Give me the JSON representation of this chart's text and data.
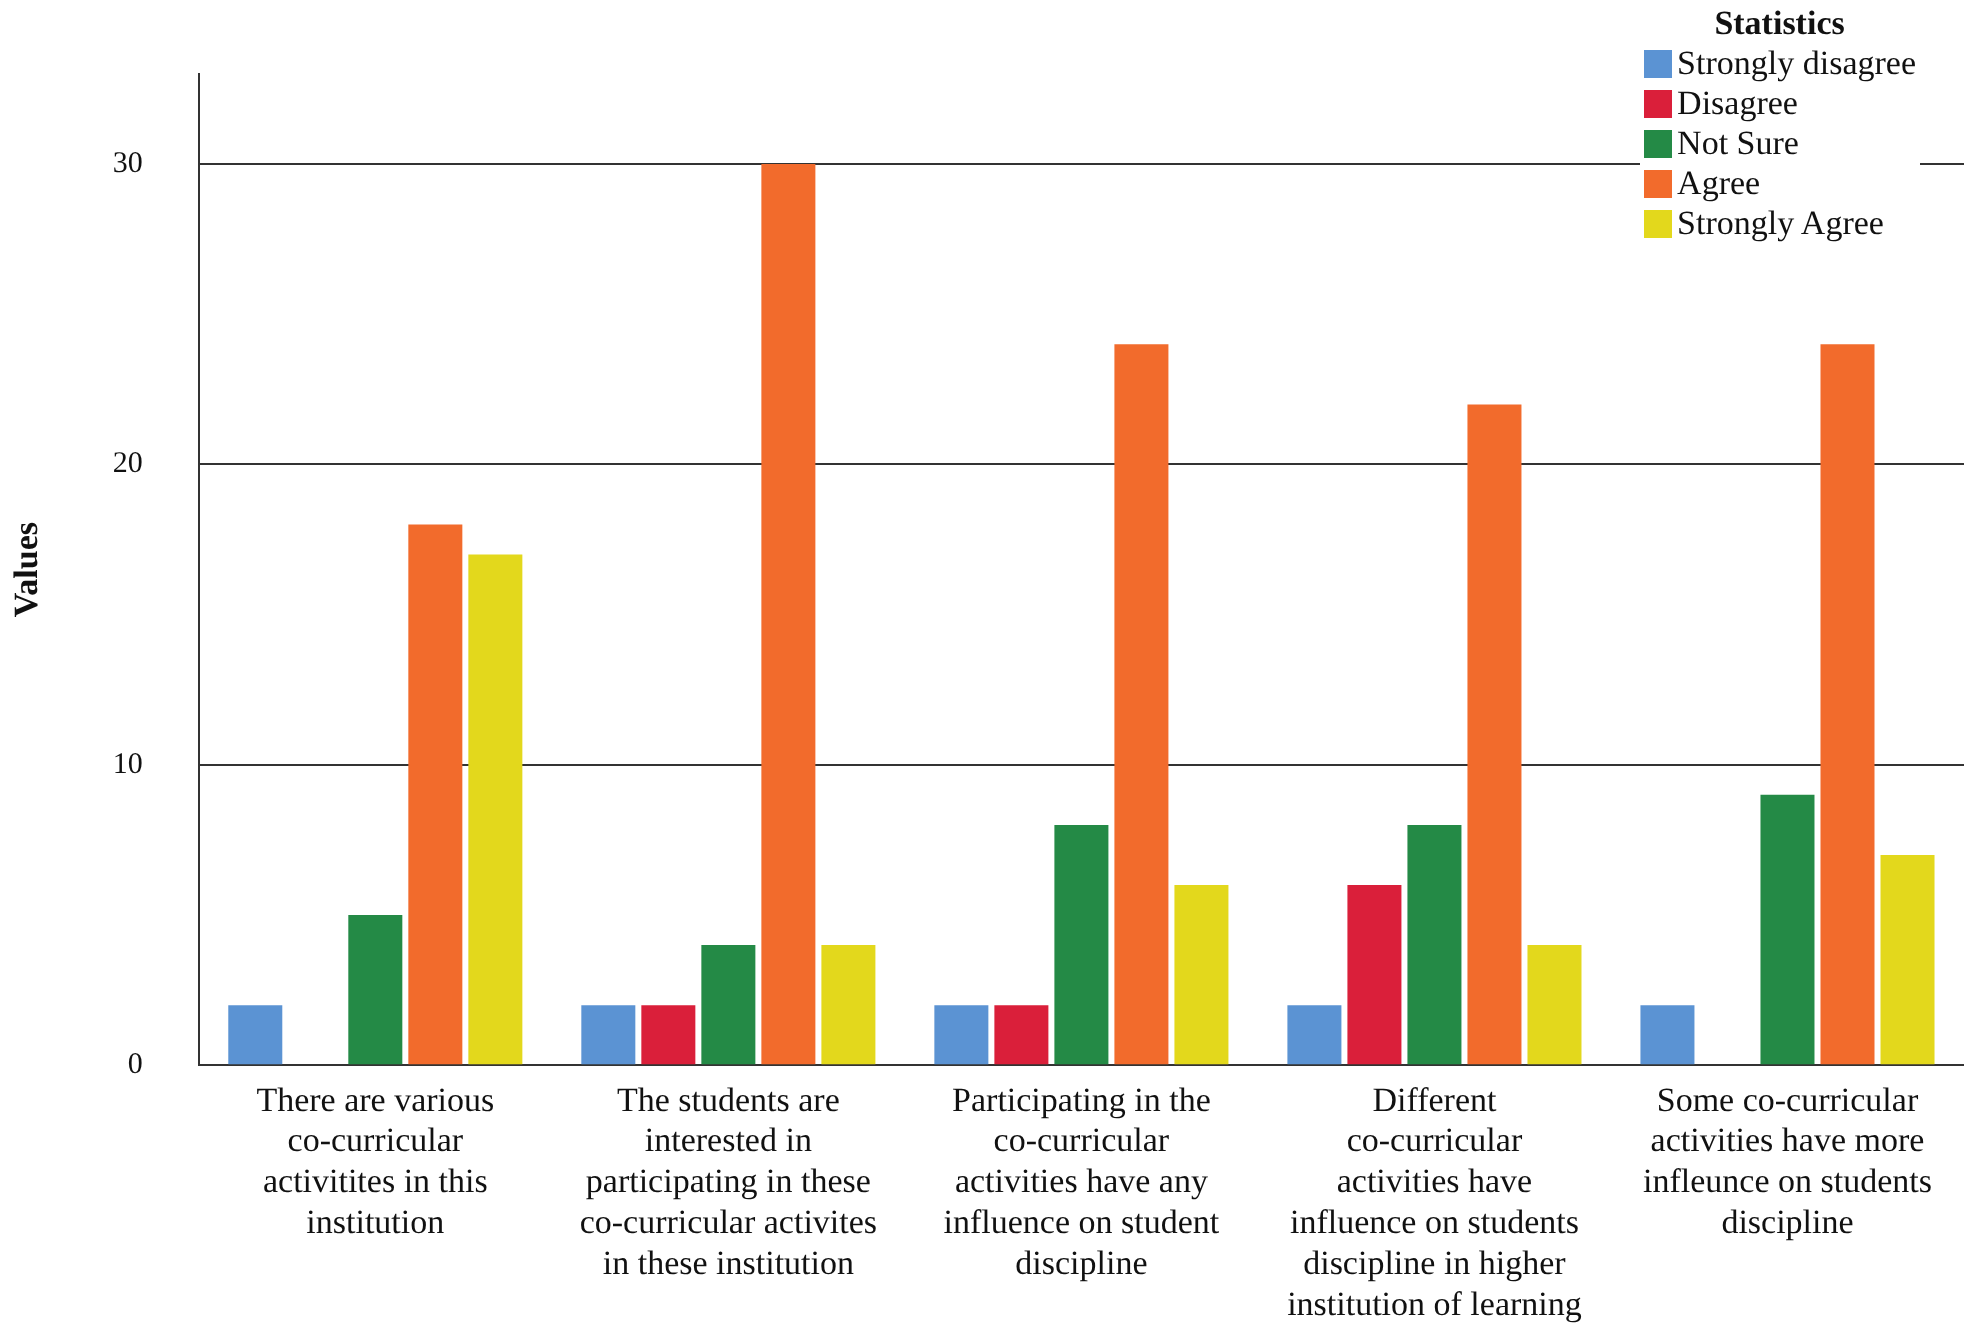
{
  "chart_data": {
    "type": "bar",
    "ylabel": "Values",
    "legend_title": "Statistics",
    "legend": "top right",
    "grid": "y",
    "categories": [
      "There are various co-curricular activitites in this institution",
      "The students are interested in participating in these co-curricular activites in these institution",
      "Participating in the co-curricular activities have any influence on student discipline",
      "Different co-curricular activities have influence on students discipline in higher institution of learning",
      "Some co-curricular activities have more infleunce on students discipline"
    ],
    "ylim": [
      0,
      33
    ],
    "yticks": [
      0,
      10,
      20,
      30
    ],
    "series": [
      {
        "name": "Strongly disagree",
        "color": "#5b93d3",
        "values": [
          2,
          2,
          2,
          2,
          2
        ]
      },
      {
        "name": "Disagree",
        "color": "#da1f3a",
        "values": [
          0,
          2,
          2,
          6,
          0
        ]
      },
      {
        "name": "Not Sure",
        "color": "#248a46",
        "values": [
          5,
          4,
          8,
          8,
          9
        ]
      },
      {
        "name": "Agree",
        "color": "#f26b2c",
        "values": [
          18,
          30,
          24,
          22,
          24
        ]
      },
      {
        "name": "Strongly Agree",
        "color": "#e3d81c",
        "values": [
          17,
          4,
          6,
          4,
          7
        ]
      }
    ]
  }
}
